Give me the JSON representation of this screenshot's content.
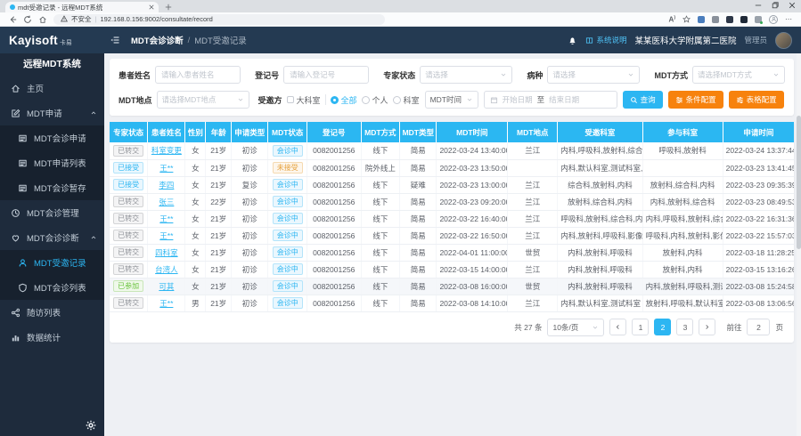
{
  "colors": {
    "accent": "#2CB6F2",
    "orange": "#F7820D",
    "header_bg": "#243A52",
    "sidebar_bg": "#1E2B3C",
    "table_header_bg": "#2BB7F2",
    "success": "#67C23A",
    "warning": "#E6A23C",
    "info": "#909399"
  },
  "browser": {
    "tab_title": "mdt受邀记录 - 远程MDT系统",
    "security_label": "不安全",
    "url": "192.168.0.156:9002/consultate/record"
  },
  "header": {
    "logo": "Kayisoft",
    "logo_tag": "卡易",
    "breadcrumb_group": "MDT会诊诊断",
    "breadcrumb_sep": "/",
    "breadcrumb_page": "MDT受邀记录",
    "help": "系统说明",
    "hospital": "某某医科大学附属第二医院",
    "role": "管理员"
  },
  "sidebar": {
    "title": "远程MDT系统",
    "items": [
      {
        "key": "home",
        "icon": "home",
        "label": "主页"
      },
      {
        "key": "mdt-apply",
        "icon": "edit",
        "label": "MDT申请",
        "expanded": true,
        "children": [
          {
            "key": "mdt-consult-apply",
            "icon": "list",
            "label": "MDT会诊申请"
          },
          {
            "key": "mdt-apply-list",
            "icon": "list",
            "label": "MDT申请列表"
          },
          {
            "key": "mdt-consult-draft",
            "icon": "list",
            "label": "MDT会诊暂存"
          }
        ]
      },
      {
        "key": "mdt-manage",
        "icon": "clock",
        "label": "MDT会诊管理"
      },
      {
        "key": "mdt-diagnosis",
        "icon": "heart",
        "label": "MDT会诊诊断",
        "expanded": true,
        "children": [
          {
            "key": "mdt-invite-records",
            "icon": "user",
            "label": "MDT受邀记录",
            "active": true
          },
          {
            "key": "mdt-consult-list",
            "icon": "shield",
            "label": "MDT会诊列表"
          }
        ]
      },
      {
        "key": "followup-list",
        "icon": "share",
        "label": "随访列表"
      },
      {
        "key": "statistics",
        "icon": "chart",
        "label": "数据统计"
      }
    ]
  },
  "filters": {
    "patient_name": {
      "label": "患者姓名",
      "placeholder": "请输入患者姓名"
    },
    "reg_no": {
      "label": "登记号",
      "placeholder": "请输入登记号"
    },
    "expert_status": {
      "label": "专家状态",
      "placeholder": "请选择"
    },
    "disease": {
      "label": "病种",
      "placeholder": "请选择"
    },
    "mdt_mode": {
      "label": "MDT方式",
      "placeholder": "请选择MDT方式"
    },
    "mdt_place": {
      "label": "MDT地点",
      "placeholder": "请选择MDT地点"
    },
    "invitee": {
      "label": "受邀方",
      "checkbox": "大科室",
      "radios": [
        "全部",
        "个人",
        "科室"
      ],
      "selected_radio": "全部"
    },
    "time_field": {
      "value": "MDT时间"
    },
    "date_range": {
      "start_placeholder": "开始日期",
      "separator": "至",
      "end_placeholder": "结束日期"
    },
    "search_button": "查询",
    "condition_button": "条件配置",
    "table_button": "表格配置"
  },
  "table": {
    "columns": [
      "专家状态",
      "患者姓名",
      "性别",
      "年龄",
      "申请类型",
      "MDT状态",
      "登记号",
      "MDT方式",
      "MDT类型",
      "MDT时间",
      "MDT地点",
      "受邀科室",
      "参与科室",
      "申请时间"
    ],
    "rows": [
      {
        "es": "已转交",
        "esType": "info",
        "name": "科室变更",
        "sex": "女",
        "age": "21岁",
        "apply": "初诊",
        "ms": "会诊中",
        "msType": "primary",
        "reg": "0082001256",
        "mode": "线下",
        "type": "简易",
        "time": "2022-03-24 13:40:00",
        "place": "兰江",
        "invited": "内科,呼吸科,放射科,综合科",
        "joined": "呼吸科,放射科",
        "applied": "2022-03-24 13:37:44"
      },
      {
        "es": "已接受",
        "esType": "primary",
        "name": "王**",
        "sex": "女",
        "age": "21岁",
        "apply": "初诊",
        "ms": "未接受",
        "msType": "warning",
        "reg": "0082001256",
        "mode": "院外线上",
        "type": "简易",
        "time": "2022-03-23 13:50:00",
        "place": "",
        "invited": "内科,默认科室,测试科室,放射科",
        "joined": "",
        "applied": "2022-03-23 13:41:45"
      },
      {
        "es": "已接受",
        "esType": "primary",
        "name": "李四",
        "sex": "女",
        "age": "21岁",
        "apply": "复诊",
        "ms": "会诊中",
        "msType": "primary",
        "reg": "0082001256",
        "mode": "线下",
        "type": "疑难",
        "time": "2022-03-23 13:00:00",
        "place": "兰江",
        "invited": "综合科,放射科,内科",
        "joined": "放射科,综合科,内科",
        "applied": "2022-03-23 09:35:39"
      },
      {
        "es": "已转交",
        "esType": "info",
        "name": "张三",
        "sex": "女",
        "age": "22岁",
        "apply": "初诊",
        "ms": "会诊中",
        "msType": "primary",
        "reg": "0082001256",
        "mode": "线下",
        "type": "简易",
        "time": "2022-03-23 09:20:00",
        "place": "兰江",
        "invited": "放射科,综合科,内科",
        "joined": "内科,放射科,综合科",
        "applied": "2022-03-23 08:49:53"
      },
      {
        "es": "已转交",
        "esType": "info",
        "name": "王**",
        "sex": "女",
        "age": "21岁",
        "apply": "初诊",
        "ms": "会诊中",
        "msType": "primary",
        "reg": "0082001256",
        "mode": "线下",
        "type": "简易",
        "time": "2022-03-22 16:40:00",
        "place": "兰江",
        "invited": "呼吸科,放射科,综合科,内科",
        "joined": "内科,呼吸科,放射科,综合科",
        "applied": "2022-03-22 16:31:36"
      },
      {
        "es": "已转交",
        "esType": "info",
        "name": "王**",
        "sex": "女",
        "age": "21岁",
        "apply": "初诊",
        "ms": "会诊中",
        "msType": "primary",
        "reg": "0082001256",
        "mode": "线下",
        "type": "简易",
        "time": "2022-03-22 16:50:00",
        "place": "兰江",
        "invited": "内科,放射科,呼吸科,影像科",
        "joined": "呼吸科,内科,放射科,影像科",
        "applied": "2022-03-22 15:57:03"
      },
      {
        "es": "已转交",
        "esType": "info",
        "name": "四科室",
        "sex": "女",
        "age": "21岁",
        "apply": "初诊",
        "ms": "会诊中",
        "msType": "primary",
        "reg": "0082001256",
        "mode": "线下",
        "type": "简易",
        "time": "2022-04-01 11:00:00",
        "place": "世贸",
        "invited": "内科,放射科,呼吸科",
        "joined": "放射科,内科",
        "applied": "2022-03-18 11:28:25"
      },
      {
        "es": "已转交",
        "esType": "info",
        "name": "台湾人",
        "sex": "女",
        "age": "21岁",
        "apply": "初诊",
        "ms": "会诊中",
        "msType": "primary",
        "reg": "0082001256",
        "mode": "线下",
        "type": "简易",
        "time": "2022-03-15 14:00:00",
        "place": "兰江",
        "invited": "内科,放射科,呼吸科",
        "joined": "放射科,内科",
        "applied": "2022-03-15 13:16:26"
      },
      {
        "es": "已参加",
        "esType": "success",
        "name": "可其",
        "sex": "女",
        "age": "21岁",
        "apply": "初诊",
        "ms": "会诊中",
        "msType": "primary",
        "reg": "0082001256",
        "mode": "线下",
        "type": "简易",
        "time": "2022-03-08 16:00:00",
        "place": "世贸",
        "invited": "内科,放射科,呼吸科",
        "joined": "内科,放射科,呼吸科,测试科室",
        "applied": "2022-03-08 15:24:58",
        "hl": true
      },
      {
        "es": "已转交",
        "esType": "info",
        "name": "王**",
        "sex": "男",
        "age": "21岁",
        "apply": "初诊",
        "ms": "会诊中",
        "msType": "primary",
        "reg": "0082001256",
        "mode": "线下",
        "type": "简易",
        "time": "2022-03-08 14:10:00",
        "place": "兰江",
        "invited": "内科,默认科室,测试科室",
        "joined": "放射科,呼吸科,默认科室,测...",
        "applied": "2022-03-08 13:06:56"
      }
    ]
  },
  "pagination": {
    "total_label": "共 27 条",
    "page_size": "10条/页",
    "pages": [
      1,
      2,
      3
    ],
    "current": 2,
    "goto_label": "前往",
    "goto_value": "2",
    "goto_suffix": "页"
  }
}
